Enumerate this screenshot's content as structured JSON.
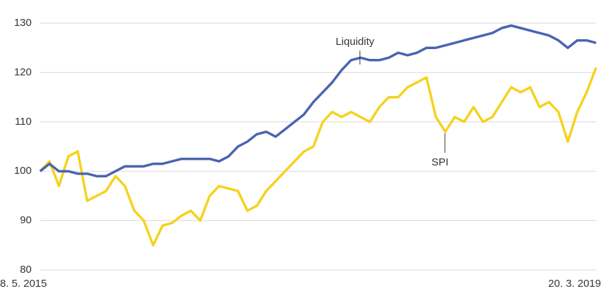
{
  "chart_data": {
    "type": "line",
    "categories": [
      "8. 5. 2015",
      null,
      null,
      null,
      null,
      null,
      null,
      null,
      null,
      null,
      null,
      null,
      null,
      null,
      null,
      null,
      null,
      null,
      null,
      null,
      null,
      null,
      null,
      null,
      null,
      null,
      null,
      null,
      null,
      null,
      null,
      null,
      null,
      null,
      null,
      null,
      null,
      null,
      null,
      null,
      null,
      null,
      null,
      null,
      null,
      null,
      null,
      null,
      null,
      null,
      null,
      null,
      null,
      null,
      null,
      null,
      null,
      null,
      null,
      "20. 3. 2019"
    ],
    "series": [
      {
        "name": "Liquidity",
        "color": "#4a64b0",
        "values": [
          100,
          101.5,
          100,
          100,
          99.5,
          99.5,
          99,
          99,
          100,
          101,
          101,
          101,
          101.5,
          101.5,
          102,
          102.5,
          102.5,
          102.5,
          102.5,
          102,
          103,
          105,
          106,
          107.5,
          108,
          107,
          108.5,
          110,
          111.5,
          114,
          116,
          118,
          120.5,
          122.5,
          123,
          122.5,
          122.5,
          123,
          124,
          123.5,
          124,
          125,
          125,
          125.5,
          126,
          126.5,
          127,
          127.5,
          128,
          129,
          129.5,
          129,
          128.5,
          128,
          127.5,
          126.5,
          125,
          126.5,
          126.5,
          126
        ]
      },
      {
        "name": "SPI",
        "color": "#f6d21e",
        "values": [
          100,
          102,
          97,
          103,
          104,
          94,
          95,
          96,
          99,
          97,
          92,
          90,
          85,
          89,
          89.5,
          91,
          92,
          90,
          95,
          97,
          96.5,
          96,
          92,
          93,
          96,
          98,
          100,
          102,
          104,
          105,
          110,
          112,
          111,
          112,
          111,
          110,
          113,
          115,
          115,
          117,
          118,
          119,
          111,
          108,
          111,
          110,
          113,
          110,
          111,
          114,
          117,
          116,
          117,
          113,
          114,
          112,
          106,
          112,
          116,
          121
        ]
      }
    ],
    "ylim": [
      80,
      130
    ],
    "yticks": [
      80,
      90,
      100,
      110,
      120,
      130
    ],
    "grid": true
  }
}
